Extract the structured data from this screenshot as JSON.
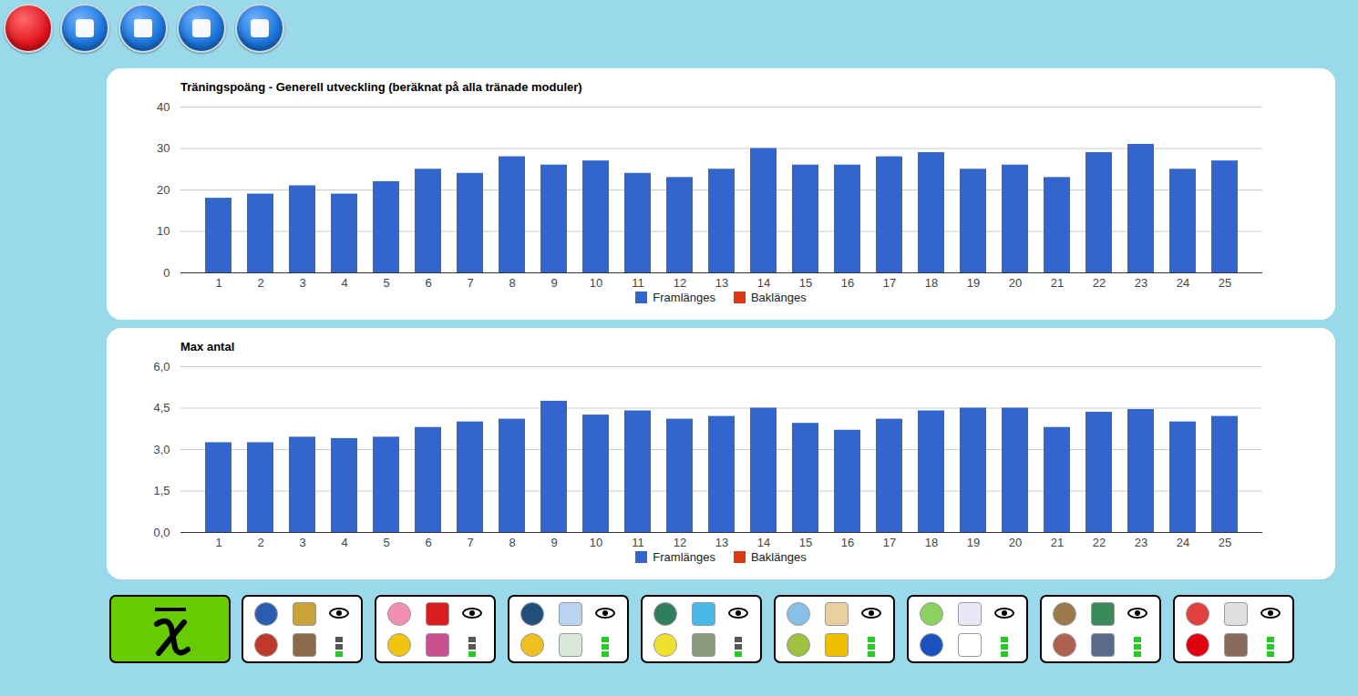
{
  "chart_data": [
    {
      "type": "bar",
      "title": "Träningspoäng - Generell utveckling (beräknat på alla tränade moduler)",
      "categories": [
        "1",
        "2",
        "3",
        "4",
        "5",
        "6",
        "7",
        "8",
        "9",
        "10",
        "11",
        "12",
        "13",
        "14",
        "15",
        "16",
        "17",
        "18",
        "19",
        "20",
        "21",
        "22",
        "23",
        "24",
        "25"
      ],
      "series": [
        {
          "name": "Framlänges",
          "color": "#3366cc",
          "values": [
            18,
            19,
            21,
            19,
            22,
            25,
            24,
            28,
            26,
            27,
            24,
            23,
            25,
            30,
            26,
            26,
            28,
            29,
            25,
            26,
            23,
            29,
            31,
            25,
            27
          ]
        },
        {
          "name": "Baklänges",
          "color": "#dc3912",
          "values": [
            null,
            null,
            null,
            null,
            null,
            null,
            null,
            null,
            null,
            null,
            null,
            null,
            null,
            null,
            null,
            null,
            null,
            null,
            null,
            null,
            null,
            null,
            null,
            null,
            null
          ]
        }
      ],
      "ylim": [
        0,
        40
      ],
      "yticks": [
        0,
        10,
        20,
        30,
        40
      ],
      "grid": true,
      "legend": "bottom"
    },
    {
      "type": "bar",
      "title": "Max antal",
      "categories": [
        "1",
        "2",
        "3",
        "4",
        "5",
        "6",
        "7",
        "8",
        "9",
        "10",
        "11",
        "12",
        "13",
        "14",
        "15",
        "16",
        "17",
        "18",
        "19",
        "20",
        "21",
        "22",
        "23",
        "24",
        "25"
      ],
      "series": [
        {
          "name": "Framlänges",
          "color": "#3366cc",
          "values": [
            3.25,
            3.25,
            3.45,
            3.4,
            3.45,
            3.8,
            4.0,
            4.1,
            4.75,
            4.25,
            4.4,
            4.1,
            4.2,
            4.5,
            3.95,
            3.7,
            4.1,
            4.4,
            4.5,
            4.5,
            3.8,
            4.35,
            4.45,
            4.0,
            4.2
          ]
        },
        {
          "name": "Baklänges",
          "color": "#dc3912",
          "values": [
            null,
            null,
            null,
            null,
            null,
            null,
            null,
            null,
            null,
            null,
            null,
            null,
            null,
            null,
            null,
            null,
            null,
            null,
            null,
            null,
            null,
            null,
            null,
            null,
            null
          ]
        }
      ],
      "ylim": [
        0,
        6
      ],
      "yticks": [
        {
          "value": 0,
          "label": "0,0"
        },
        {
          "value": 1.5,
          "label": "1,5"
        },
        {
          "value": 3,
          "label": "3,0"
        },
        {
          "value": 4.5,
          "label": "4,5"
        },
        {
          "value": 6,
          "label": "6,0"
        }
      ],
      "grid": true,
      "legend": "bottom"
    }
  ]
}
